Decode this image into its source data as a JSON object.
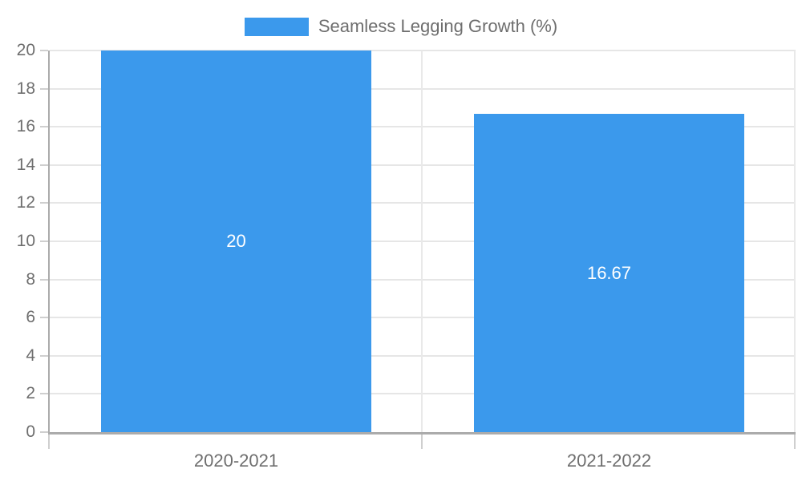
{
  "chart_data": {
    "type": "bar",
    "legend": {
      "label": "Seamless Legging Growth (%)",
      "position": "top"
    },
    "categories": [
      "2020-2021",
      "2021-2022"
    ],
    "values": [
      20,
      16.67
    ],
    "bar_labels": [
      "20",
      "16.67"
    ],
    "yticks": [
      0,
      2,
      4,
      6,
      8,
      10,
      12,
      14,
      16,
      18,
      20
    ],
    "ylim": [
      0,
      20
    ],
    "grid": true,
    "bar_width_fraction": 0.723
  },
  "colors": {
    "bar": "#3B99EC",
    "grid": "#e6e6e6",
    "boundary_grid": "#e9e9e9",
    "axis": "#ababab",
    "tick": "#cfcfcf",
    "axis_text": "#6e6e6e",
    "legend_text": "#6e6e6e",
    "bar_label_text": "#ffffff",
    "background": "#ffffff"
  }
}
